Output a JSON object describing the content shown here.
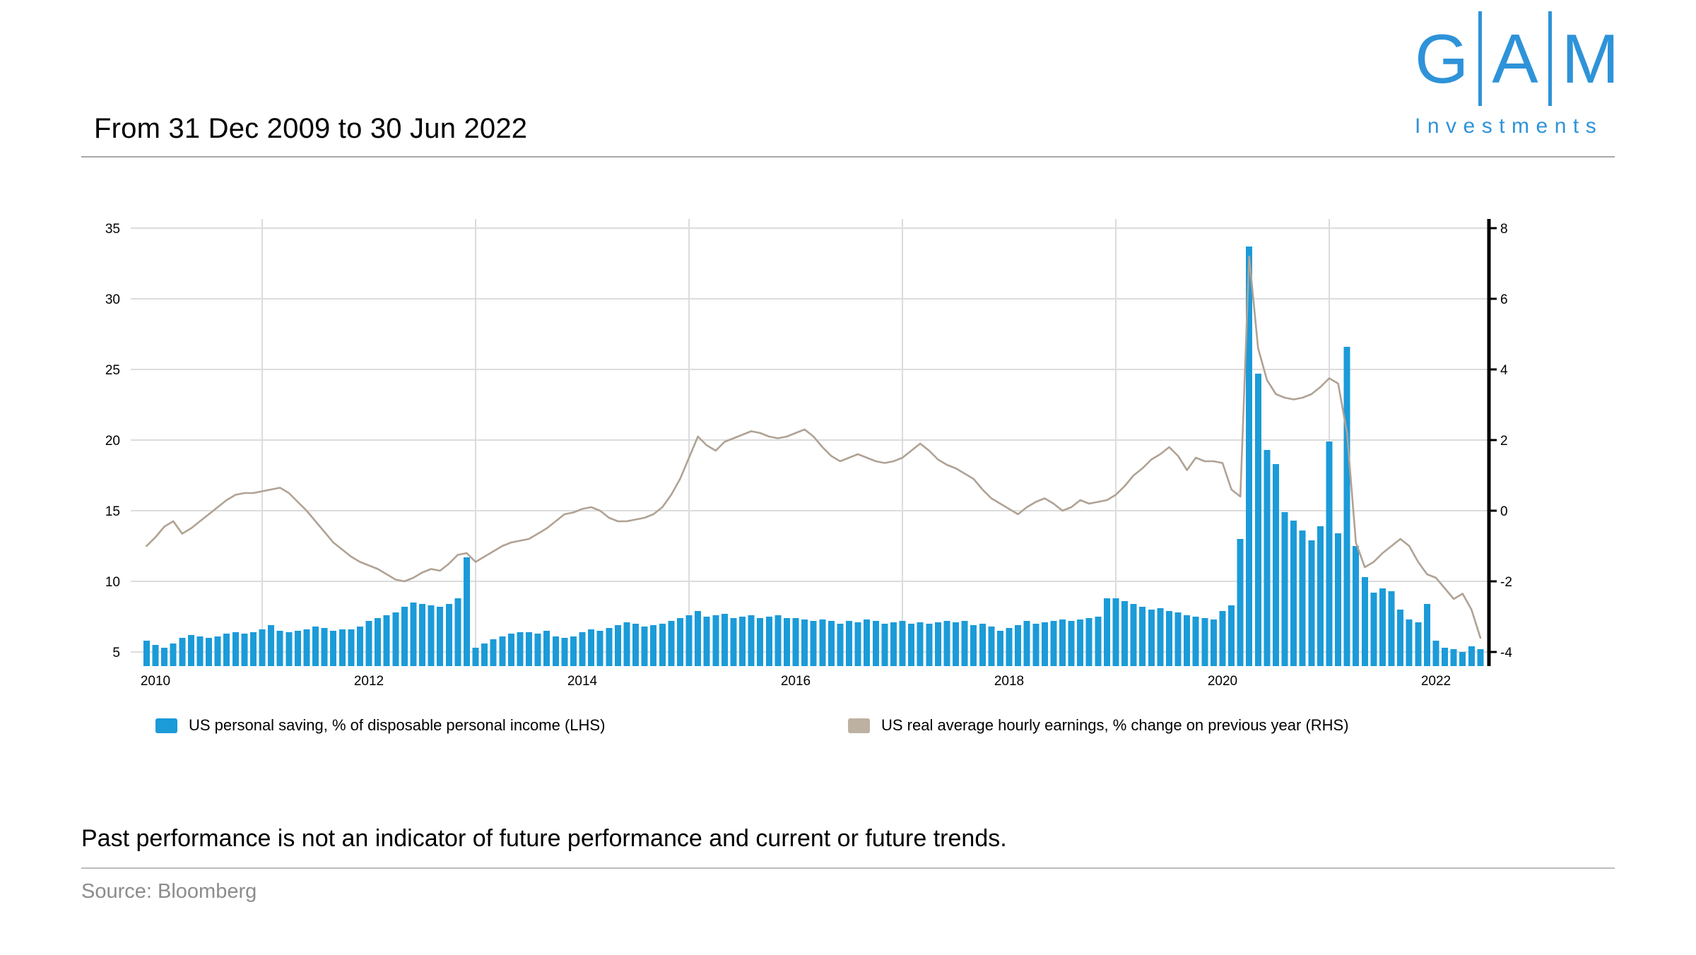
{
  "header": {
    "title": "From 31 Dec 2009 to 30 Jun 2022"
  },
  "logo": {
    "letters": [
      "G",
      "A",
      "M"
    ],
    "word": "Investments",
    "color": "#2e93d9"
  },
  "footer": {
    "disclaimer": "Past performance is not an indicator of future performance and current or future trends.",
    "source": "Source: Bloomberg"
  },
  "chart_data": {
    "type": "bar+line",
    "frequency": "monthly",
    "x_start": "2009-12",
    "x_end": "2022-06",
    "x_tick_labels": [
      "2010",
      "2012",
      "2014",
      "2016",
      "2018",
      "2020",
      "2022"
    ],
    "left_axis": {
      "ticks": [
        35,
        30,
        25,
        20,
        15,
        10,
        5
      ],
      "baseline_value": 4
    },
    "right_axis": {
      "ticks": [
        8,
        6,
        4,
        2,
        0,
        -2,
        -4
      ]
    },
    "grid": true,
    "legend_position": "bottom",
    "colors": {
      "bar": "#1b9bd8",
      "line": "#b0a294",
      "grid": "#dcdcdc",
      "axis_spine": "#000000"
    },
    "series": [
      {
        "name": "US personal saving, % of disposable personal income (LHS)",
        "type": "bar",
        "axis": "left",
        "color": "#1b9bd8",
        "values": [
          5.8,
          5.5,
          5.3,
          5.6,
          6.0,
          6.2,
          6.1,
          6.0,
          6.1,
          6.3,
          6.4,
          6.3,
          6.4,
          6.6,
          6.9,
          6.5,
          6.4,
          6.5,
          6.6,
          6.8,
          6.7,
          6.5,
          6.6,
          6.6,
          6.8,
          7.2,
          7.4,
          7.6,
          7.8,
          8.2,
          8.5,
          8.4,
          8.3,
          8.2,
          8.4,
          8.8,
          11.7,
          5.3,
          5.6,
          5.9,
          6.1,
          6.3,
          6.4,
          6.4,
          6.3,
          6.5,
          6.1,
          6.0,
          6.1,
          6.4,
          6.6,
          6.5,
          6.7,
          6.9,
          7.1,
          7.0,
          6.8,
          6.9,
          7.0,
          7.2,
          7.4,
          7.6,
          7.9,
          7.5,
          7.6,
          7.7,
          7.4,
          7.5,
          7.6,
          7.4,
          7.5,
          7.6,
          7.4,
          7.4,
          7.3,
          7.2,
          7.3,
          7.2,
          7.0,
          7.2,
          7.1,
          7.3,
          7.2,
          7.0,
          7.1,
          7.2,
          7.0,
          7.1,
          7.0,
          7.1,
          7.2,
          7.1,
          7.2,
          6.9,
          7.0,
          6.8,
          6.5,
          6.7,
          6.9,
          7.2,
          7.0,
          7.1,
          7.2,
          7.3,
          7.2,
          7.3,
          7.4,
          7.5,
          8.8,
          8.8,
          8.6,
          8.4,
          8.2,
          8.0,
          8.1,
          7.9,
          7.8,
          7.6,
          7.5,
          7.4,
          7.3,
          7.9,
          8.3,
          13.0,
          33.7,
          24.7,
          19.3,
          18.3,
          14.9,
          14.3,
          13.6,
          12.9,
          13.9,
          19.9,
          13.4,
          26.6,
          12.5,
          10.3,
          9.2,
          9.5,
          9.3,
          8.0,
          7.3,
          7.1,
          8.4,
          5.8,
          5.3,
          5.2,
          5.0,
          5.4,
          5.2
        ]
      },
      {
        "name": "US real average hourly earnings, % change on previous year (RHS)",
        "type": "line",
        "axis": "right",
        "color": "#b0a294",
        "values": [
          -1.0,
          -0.75,
          -0.45,
          -0.3,
          -0.65,
          -0.5,
          -0.3,
          -0.1,
          0.1,
          0.3,
          0.45,
          0.5,
          0.5,
          0.55,
          0.6,
          0.65,
          0.5,
          0.25,
          0.0,
          -0.3,
          -0.6,
          -0.9,
          -1.1,
          -1.3,
          -1.45,
          -1.55,
          -1.65,
          -1.8,
          -1.95,
          -2.0,
          -1.9,
          -1.75,
          -1.65,
          -1.7,
          -1.5,
          -1.25,
          -1.2,
          -1.45,
          -1.3,
          -1.15,
          -1.0,
          -0.9,
          -0.85,
          -0.8,
          -0.65,
          -0.5,
          -0.3,
          -0.1,
          -0.05,
          0.05,
          0.1,
          0.0,
          -0.2,
          -0.3,
          -0.3,
          -0.25,
          -0.2,
          -0.1,
          0.1,
          0.45,
          0.9,
          1.5,
          2.1,
          1.85,
          1.7,
          1.95,
          2.05,
          2.15,
          2.25,
          2.2,
          2.1,
          2.05,
          2.1,
          2.2,
          2.3,
          2.1,
          1.8,
          1.55,
          1.4,
          1.5,
          1.6,
          1.5,
          1.4,
          1.35,
          1.4,
          1.5,
          1.7,
          1.9,
          1.7,
          1.45,
          1.3,
          1.2,
          1.05,
          0.9,
          0.6,
          0.35,
          0.2,
          0.05,
          -0.1,
          0.1,
          0.25,
          0.35,
          0.2,
          0.0,
          0.1,
          0.3,
          0.2,
          0.25,
          0.3,
          0.45,
          0.7,
          1.0,
          1.2,
          1.45,
          1.6,
          1.8,
          1.55,
          1.15,
          1.5,
          1.4,
          1.4,
          1.35,
          0.6,
          0.4,
          7.2,
          4.6,
          3.7,
          3.3,
          3.2,
          3.15,
          3.2,
          3.3,
          3.5,
          3.75,
          3.6,
          2.2,
          -0.9,
          -1.6,
          -1.45,
          -1.2,
          -1.0,
          -0.8,
          -1.0,
          -1.45,
          -1.8,
          -1.9,
          -2.2,
          -2.5,
          -2.35,
          -2.8,
          -3.6
        ]
      }
    ]
  }
}
